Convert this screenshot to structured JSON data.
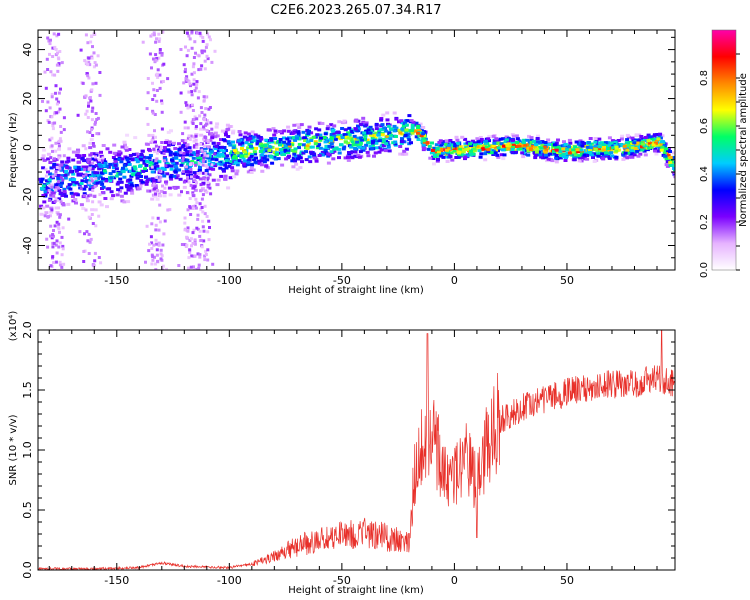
{
  "title": "C2E6.2023.265.07.34.R17",
  "chart_data": [
    {
      "type": "heatmap",
      "xlabel": "Height of straight line (km)",
      "ylabel": "Frequency (Hz)",
      "xlim": [
        -185,
        98
      ],
      "ylim": [
        -50,
        48
      ],
      "xticks": [
        -150,
        -100,
        -50,
        0,
        50
      ],
      "yticks": [
        -40,
        -20,
        0,
        20,
        40
      ],
      "colorbar": {
        "label": "Normalized spectral amplitude",
        "range": [
          0,
          1
        ],
        "ticks": [
          "0.0",
          "0.2",
          "0.4",
          "0.6",
          "0.8"
        ],
        "colors": [
          "#ffffff",
          "#e6b3ff",
          "#7a00ff",
          "#0000ff",
          "#00ccff",
          "#00ff66",
          "#ffff00",
          "#ff8800",
          "#ff0000",
          "#ff00aa"
        ]
      },
      "ridge": {
        "x": [
          -185,
          -175,
          -165,
          -155,
          -145,
          -135,
          -125,
          -115,
          -105,
          -95,
          -85,
          -75,
          -65,
          -55,
          -45,
          -35,
          -25,
          -18,
          -10,
          0,
          10,
          20,
          30,
          40,
          50,
          60,
          70,
          80,
          90,
          97
        ],
        "y": [
          -14,
          -12,
          -11,
          -10,
          -9,
          -7,
          -6,
          -5,
          -3,
          -1,
          0,
          1,
          2,
          3,
          4,
          5,
          6,
          8,
          -1,
          0,
          0,
          1,
          1,
          0,
          -1,
          0,
          0,
          1,
          3,
          -7
        ]
      }
    },
    {
      "type": "line",
      "xlabel": "Height of straight line (km)",
      "ylabel": "SNR (10 * v/v)",
      "scale_note": "(x10⁴)",
      "xlim": [
        -185,
        98
      ],
      "ylim": [
        0,
        2.0
      ],
      "xticks": [
        -150,
        -100,
        -50,
        0,
        50
      ],
      "yticks": [
        "0.0",
        "0.5",
        "1.0",
        "1.5",
        "2.0"
      ],
      "color": "#e8302a",
      "trend": {
        "x": [
          -185,
          -160,
          -140,
          -130,
          -120,
          -100,
          -90,
          -80,
          -70,
          -60,
          -50,
          -40,
          -30,
          -20,
          -18,
          -15,
          -12,
          -10,
          -5,
          0,
          5,
          10,
          15,
          20,
          30,
          40,
          50,
          60,
          70,
          80,
          90,
          97
        ],
        "y": [
          0.01,
          0.01,
          0.02,
          0.06,
          0.03,
          0.02,
          0.05,
          0.12,
          0.2,
          0.25,
          0.28,
          0.3,
          0.28,
          0.22,
          0.75,
          1.0,
          1.1,
          1.2,
          0.8,
          0.8,
          1.0,
          0.7,
          1.1,
          1.25,
          1.35,
          1.42,
          1.48,
          1.52,
          1.55,
          1.55,
          1.6,
          1.55
        ]
      },
      "peaks": [
        {
          "x": -12,
          "y": 1.97
        },
        {
          "x": 92,
          "y": 2.0
        },
        {
          "x": 10,
          "y": 0.27
        }
      ]
    }
  ]
}
